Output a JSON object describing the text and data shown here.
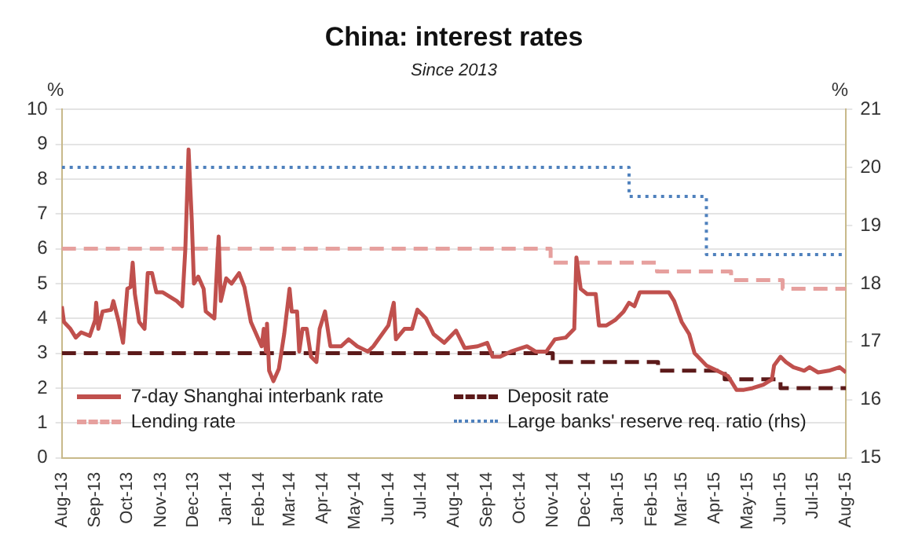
{
  "chart_data": {
    "type": "line",
    "title": "China: interest rates",
    "subtitle": "Since 2013",
    "ylabel": "%",
    "y2label": "%",
    "xlim": [
      "2013-08-01",
      "2015-08-01"
    ],
    "xticks": [
      {
        "value": "2013-08-01",
        "label": "Aug-13"
      },
      {
        "value": "2013-09-01",
        "label": "Sep-13"
      },
      {
        "value": "2013-10-01",
        "label": "Oct-13"
      },
      {
        "value": "2013-11-01",
        "label": "Nov-13"
      },
      {
        "value": "2013-12-01",
        "label": "Dec-13"
      },
      {
        "value": "2014-01-01",
        "label": "Jan-14"
      },
      {
        "value": "2014-02-01",
        "label": "Feb-14"
      },
      {
        "value": "2014-03-01",
        "label": "Mar-14"
      },
      {
        "value": "2014-04-01",
        "label": "Apr-14"
      },
      {
        "value": "2014-05-01",
        "label": "May-14"
      },
      {
        "value": "2014-06-01",
        "label": "Jun-14"
      },
      {
        "value": "2014-07-01",
        "label": "Jul-14"
      },
      {
        "value": "2014-08-01",
        "label": "Aug-14"
      },
      {
        "value": "2014-09-01",
        "label": "Sep-14"
      },
      {
        "value": "2014-10-01",
        "label": "Oct-14"
      },
      {
        "value": "2014-11-01",
        "label": "Nov-14"
      },
      {
        "value": "2014-12-01",
        "label": "Dec-14"
      },
      {
        "value": "2015-01-01",
        "label": "Jan-15"
      },
      {
        "value": "2015-02-01",
        "label": "Feb-15"
      },
      {
        "value": "2015-03-01",
        "label": "Mar-15"
      },
      {
        "value": "2015-04-01",
        "label": "Apr-15"
      },
      {
        "value": "2015-05-01",
        "label": "May-15"
      },
      {
        "value": "2015-06-01",
        "label": "Jun-15"
      },
      {
        "value": "2015-07-01",
        "label": "Jul-15"
      },
      {
        "value": "2015-08-01",
        "label": "Aug-15"
      }
    ],
    "ylim": [
      0,
      10
    ],
    "yticks": [
      0,
      1,
      2,
      3,
      4,
      5,
      6,
      7,
      8,
      9,
      10
    ],
    "y2lim": [
      15,
      21
    ],
    "y2ticks": [
      15,
      16,
      17,
      18,
      19,
      20,
      21
    ],
    "grid": "y",
    "legend": "bottom",
    "series": [
      {
        "name": "7-day Shanghai interbank rate",
        "line_style": "solid",
        "color": "#c0504d",
        "x": [
          "2013-08-01",
          "2013-08-03",
          "2013-08-09",
          "2013-08-14",
          "2013-08-19",
          "2013-08-27",
          "2013-09-01",
          "2013-09-02",
          "2013-09-04",
          "2013-09-08",
          "2013-09-16",
          "2013-09-18",
          "2013-09-23",
          "2013-09-27",
          "2013-10-01",
          "2013-10-04",
          "2013-10-06",
          "2013-10-08",
          "2013-10-12",
          "2013-10-17",
          "2013-10-20",
          "2013-10-24",
          "2013-10-28",
          "2013-11-03",
          "2013-11-16",
          "2013-11-21",
          "2013-11-24",
          "2013-11-27",
          "2013-11-30",
          "2013-12-02",
          "2013-12-06",
          "2013-12-11",
          "2013-12-13",
          "2013-12-21",
          "2013-12-25",
          "2013-12-27",
          "2014-01-01",
          "2014-01-06",
          "2014-01-13",
          "2014-01-18",
          "2014-01-24",
          "2014-01-29",
          "2014-02-03",
          "2014-02-05",
          "2014-02-07",
          "2014-02-08",
          "2014-02-10",
          "2014-02-14",
          "2014-02-19",
          "2014-02-24",
          "2014-03-01",
          "2014-03-03",
          "2014-03-08",
          "2014-03-10",
          "2014-03-13",
          "2014-03-17",
          "2014-03-21",
          "2014-03-26",
          "2014-03-29",
          "2014-04-03",
          "2014-04-08",
          "2014-04-18",
          "2014-04-25",
          "2014-05-03",
          "2014-05-13",
          "2014-05-18",
          "2014-06-01",
          "2014-06-06",
          "2014-06-08",
          "2014-06-16",
          "2014-06-23",
          "2014-06-28",
          "2014-07-06",
          "2014-07-13",
          "2014-07-23",
          "2014-08-03",
          "2014-08-11",
          "2014-08-23",
          "2014-09-01",
          "2014-09-06",
          "2014-09-13",
          "2014-09-23",
          "2014-10-03",
          "2014-10-08",
          "2014-10-16",
          "2014-10-26",
          "2014-11-03",
          "2014-11-13",
          "2014-11-21",
          "2014-11-23",
          "2014-11-27",
          "2014-12-03",
          "2014-12-11",
          "2014-12-14",
          "2014-12-21",
          "2014-12-29",
          "2015-01-06",
          "2015-01-11",
          "2015-01-16",
          "2015-01-21",
          "2015-02-01",
          "2015-02-17",
          "2015-02-22",
          "2015-03-01",
          "2015-03-08",
          "2015-03-13",
          "2015-03-24",
          "2015-04-03",
          "2015-04-13",
          "2015-04-21",
          "2015-04-28",
          "2015-05-06",
          "2015-05-16",
          "2015-05-24",
          "2015-05-26",
          "2015-06-01",
          "2015-06-06",
          "2015-06-13",
          "2015-06-23",
          "2015-06-28",
          "2015-07-06",
          "2015-07-16",
          "2015-07-26",
          "2015-08-01"
        ],
        "values": [
          4.35,
          3.9,
          3.7,
          3.45,
          3.6,
          3.5,
          3.95,
          4.45,
          3.7,
          4.2,
          4.25,
          4.5,
          3.9,
          3.3,
          4.85,
          4.9,
          5.6,
          4.7,
          3.9,
          3.7,
          5.3,
          5.3,
          4.75,
          4.75,
          4.5,
          4.35,
          6.0,
          8.85,
          6.8,
          5.0,
          5.2,
          4.85,
          4.2,
          4.0,
          6.35,
          4.5,
          5.15,
          5.0,
          5.3,
          4.9,
          3.9,
          3.55,
          3.2,
          3.7,
          3.05,
          3.85,
          2.5,
          2.2,
          2.55,
          3.55,
          4.85,
          4.2,
          4.2,
          3.05,
          3.7,
          3.7,
          2.9,
          2.75,
          3.7,
          4.2,
          3.2,
          3.2,
          3.4,
          3.2,
          3.05,
          3.2,
          3.8,
          4.45,
          3.4,
          3.7,
          3.7,
          4.25,
          4.0,
          3.55,
          3.3,
          3.65,
          3.15,
          3.2,
          3.3,
          2.9,
          2.9,
          3.05,
          3.15,
          3.2,
          3.05,
          3.05,
          3.4,
          3.45,
          3.7,
          5.75,
          4.85,
          4.7,
          4.7,
          3.8,
          3.8,
          3.95,
          4.2,
          4.45,
          4.35,
          4.75,
          4.75,
          4.75,
          4.5,
          3.9,
          3.55,
          3.0,
          2.65,
          2.5,
          2.35,
          1.95,
          1.95,
          2.0,
          2.1,
          2.25,
          2.65,
          2.9,
          2.75,
          2.6,
          2.5,
          2.6,
          2.45,
          2.5,
          2.6,
          2.45
        ]
      },
      {
        "name": "Deposit rate",
        "type": "step",
        "line_style": "dashed",
        "color": "#5c1a1a",
        "x": [
          "2013-08-01",
          "2014-11-01",
          "2015-02-07",
          "2015-04-10",
          "2015-06-01",
          "2015-08-01"
        ],
        "values": [
          3.0,
          2.75,
          2.5,
          2.25,
          2.0,
          2.0
        ]
      },
      {
        "name": "Lending rate",
        "type": "step",
        "line_style": "dashed",
        "color": "#e6a09e",
        "x": [
          "2013-08-01",
          "2014-10-30",
          "2015-02-06",
          "2015-04-16",
          "2015-06-03",
          "2015-08-01"
        ],
        "values": [
          6.0,
          5.6,
          5.35,
          5.1,
          4.85,
          4.85
        ]
      },
      {
        "name": "Large banks' reserve req. ratio (rhs)",
        "type": "step",
        "line_style": "dotted",
        "axis": "y2",
        "color": "#4f81bd",
        "x": [
          "2013-08-01",
          "2015-01-11",
          "2015-03-24",
          "2015-08-01"
        ],
        "values": [
          20.0,
          19.5,
          18.5,
          18.5
        ]
      }
    ]
  }
}
